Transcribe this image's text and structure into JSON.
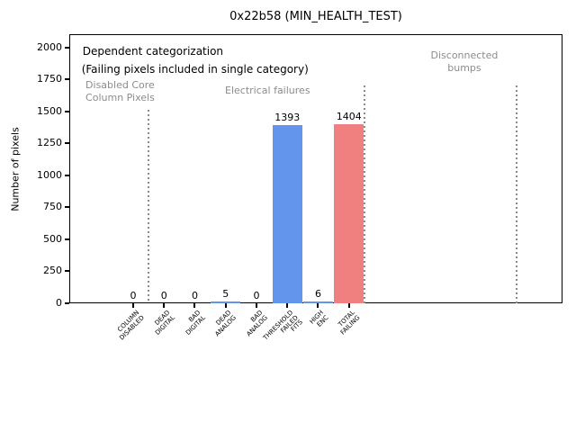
{
  "window": {
    "title": "0x22b58 (MIN_HEALTH_TEST)"
  },
  "chart_data": {
    "type": "bar",
    "title": "0x22b58 (MIN_HEALTH_TEST)",
    "xlabel": "",
    "ylabel": "Number of pixels",
    "ylim": [
      0,
      2105
    ],
    "xlim": [
      -2.074,
      13.93
    ],
    "yticks": [
      0,
      250,
      500,
      750,
      1000,
      1250,
      1500,
      1750,
      2000
    ],
    "grid": false,
    "legend": "none",
    "categories": [
      "COLUMN\nDISABLED",
      "DEAD\nDIGITAL",
      "BAD\nDIGITAL",
      "DEAD\nANALOG",
      "BAD\nANALOG",
      "THRESHOLD\nFAILED\nFITS",
      "HIGH\nENC",
      "TOTAL\nFAILING"
    ],
    "values": [
      0,
      0,
      0,
      5,
      0,
      1393,
      6,
      1404
    ],
    "value_labels": [
      "0",
      "0",
      "0",
      "5",
      "0",
      "1393",
      "6",
      "1404"
    ],
    "bar_colors": [
      "#6495ed",
      "#6495ed",
      "#6495ed",
      "#6495ed",
      "#6495ed",
      "#6495ed",
      "#6495ed",
      "#f08080"
    ],
    "colors": {
      "bar_blue": "#6495ed",
      "bar_red": "#f08080",
      "section_gray": "#8c8c8c",
      "axis_black": "#000000"
    },
    "annotations": [
      {
        "text": "Dependent categorization",
        "x": 0.027,
        "y": 0.041,
        "ha": "left",
        "color": "#000000",
        "size": 12
      },
      {
        "text": "(Failing pixels included in single category)",
        "x": 0.025,
        "y": 0.108,
        "ha": "left",
        "color": "#000000",
        "size": 12
      },
      {
        "text": "Disabled Core\nColumn Pixels",
        "x": 0.103,
        "y": 0.168,
        "ha": "center",
        "color": "#8c8c8c",
        "size": 11
      },
      {
        "text": "Electrical failures",
        "x": 0.402,
        "y": 0.188,
        "ha": "center",
        "color": "#8c8c8c",
        "size": 11
      },
      {
        "text": "Disconnected\nbumps",
        "x": 0.801,
        "y": 0.057,
        "ha": "center",
        "color": "#8c8c8c",
        "size": 11
      }
    ],
    "separators": [
      {
        "x": 0.5,
        "y_top_value": 1514,
        "style": "dotted",
        "color": "#8a8a8a"
      },
      {
        "x": 7.5,
        "y_top_value": 1705,
        "style": "dotted",
        "color": "#8a8a8a"
      },
      {
        "x": 12.43,
        "y_top_value": 1705,
        "style": "dotted",
        "color": "#8a8a8a"
      }
    ]
  }
}
